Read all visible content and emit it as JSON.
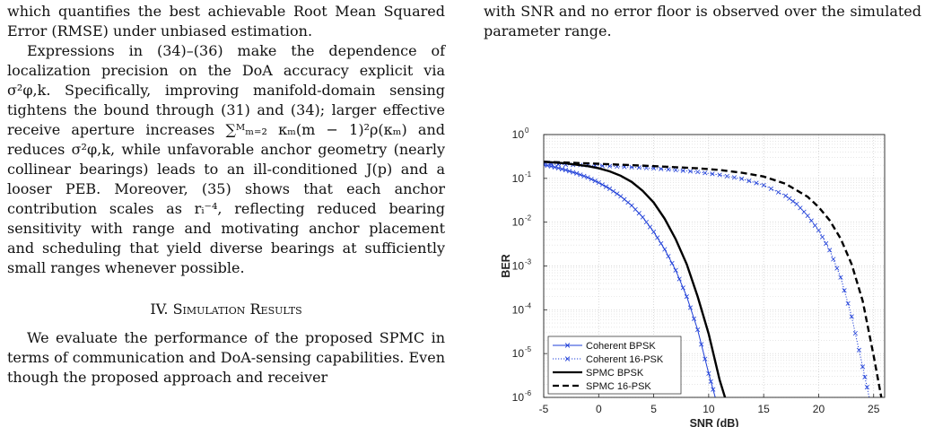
{
  "left_column": {
    "p1": "which quantifies the best achievable Root Mean Squared Error (RMSE) under unbiased estimation.",
    "p2": "Expressions in (34)–(36) make the dependence of localization precision on the DoA accuracy explicit via σ²φ,k. Specifically, improving manifold-domain sensing tightens the bound through (31) and (34); larger effective receive aperture increases ∑ᴹₘ₌₂ κₘ(m − 1)²ρ(κₘ) and reduces σ²φ,k, while unfavorable anchor geometry (nearly collinear bearings) leads to an ill-conditioned J(p) and a looser PEB. Moreover, (35) shows that each anchor contribution scales as rᵢ⁻⁴, reflecting reduced bearing sensitivity with range and motivating anchor placement and scheduling that yield diverse bearings at sufficiently small ranges whenever possible.",
    "section_title": "IV. Simulation Results",
    "p3": "We evaluate the performance of the proposed SPMC in terms of communication and DoA-sensing capabilities. Even though the proposed approach and receiver"
  },
  "right_column": {
    "p1": "with SNR and no error floor is observed over the simulated parameter range."
  },
  "chart_data": {
    "type": "line",
    "xlabel": "SNR (dB)",
    "ylabel": "BER",
    "xlim": [
      -5,
      26
    ],
    "ylim": [
      1e-06,
      1
    ],
    "yscale": "log",
    "x_ticks": [
      -5,
      0,
      5,
      10,
      15,
      20,
      25
    ],
    "y_tick_exponents": [
      0,
      -1,
      -2,
      -3,
      -4,
      -5,
      -6
    ],
    "grid": true,
    "legend_position": "bottom-left",
    "series": [
      {
        "name": "Coherent BPSK",
        "color": "#1f3fd8",
        "style": "solid",
        "marker": "x",
        "x": [
          -5,
          -4,
          -3,
          -2,
          -1,
          0,
          1,
          2,
          3,
          4,
          5,
          6,
          7,
          8,
          9,
          10,
          10.6
        ],
        "y": [
          0.205,
          0.18,
          0.155,
          0.13,
          0.105,
          0.08,
          0.058,
          0.039,
          0.024,
          0.013,
          0.006,
          0.0024,
          0.0008,
          0.0002,
          3.5e-05,
          3.5e-06,
          1e-06
        ]
      },
      {
        "name": "Coherent 16-PSK",
        "color": "#1f3fd8",
        "style": "dotted",
        "marker": "x",
        "x": [
          -5,
          -3,
          -1,
          1,
          3,
          5,
          7,
          9,
          11,
          13,
          15,
          17,
          18,
          19,
          20,
          21,
          22,
          23,
          24,
          24.6
        ],
        "y": [
          0.215,
          0.205,
          0.2,
          0.19,
          0.18,
          0.17,
          0.155,
          0.14,
          0.12,
          0.098,
          0.07,
          0.04,
          0.026,
          0.014,
          0.0065,
          0.0023,
          0.00055,
          7e-05,
          5e-06,
          1e-06
        ]
      },
      {
        "name": "SPMC BPSK",
        "color": "#000000",
        "style": "solid",
        "marker": "",
        "x": [
          -5,
          -3,
          -1,
          0,
          1,
          2,
          3,
          4,
          5,
          6,
          7,
          8,
          9,
          10,
          11,
          11.6,
          12.2
        ],
        "y": [
          0.24,
          0.22,
          0.19,
          0.17,
          0.145,
          0.115,
          0.083,
          0.052,
          0.028,
          0.012,
          0.0041,
          0.0011,
          0.0002,
          2.8e-05,
          2.5e-06,
          8e-07,
          2e-07
        ]
      },
      {
        "name": "SPMC 16-PSK",
        "color": "#000000",
        "style": "dashed",
        "marker": "",
        "x": [
          -5,
          -3,
          -1,
          1,
          3,
          5,
          7,
          9,
          11,
          13,
          15,
          17,
          19,
          20,
          21,
          22,
          23,
          24,
          25,
          25.7
        ],
        "y": [
          0.24,
          0.23,
          0.22,
          0.21,
          0.2,
          0.19,
          0.18,
          0.17,
          0.155,
          0.135,
          0.11,
          0.075,
          0.038,
          0.022,
          0.011,
          0.0042,
          0.0011,
          0.00016,
          9e-06,
          1e-06
        ]
      }
    ]
  }
}
